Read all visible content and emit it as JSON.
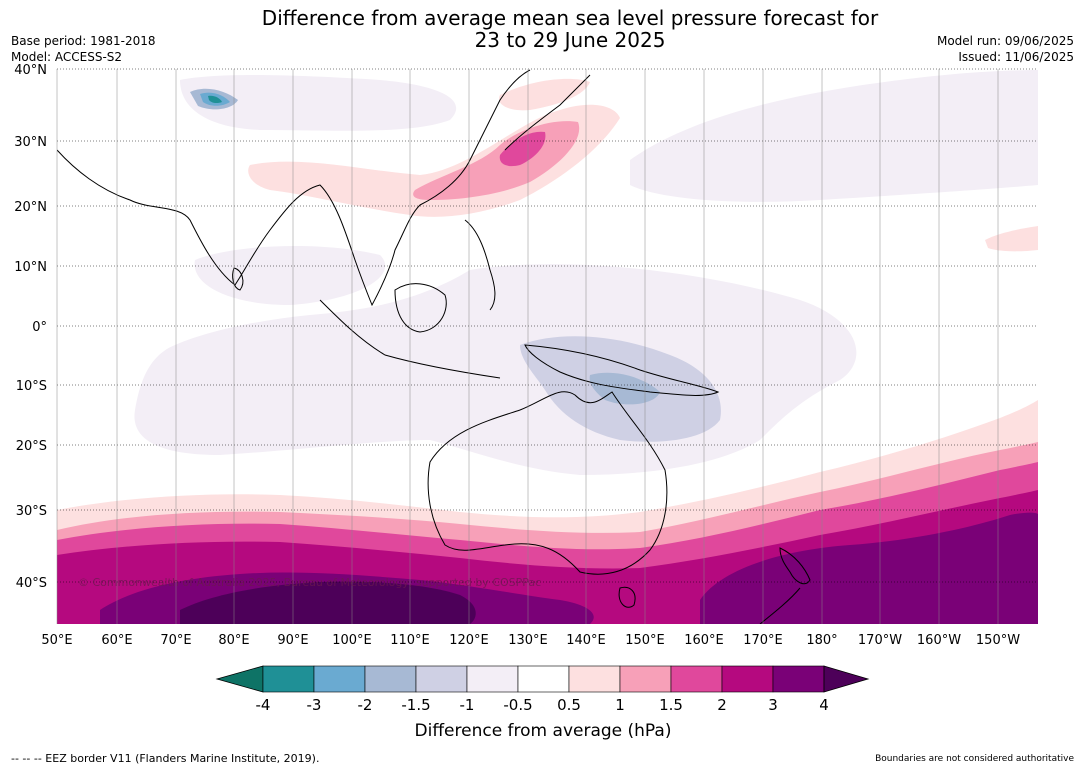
{
  "header": {
    "title_line1": "Difference from average mean sea level pressure forecast for",
    "title_line2": "23 to 29 June 2025",
    "base_period": "Base period: 1981-2018",
    "model": "Model: ACCESS-S2",
    "model_run": "Model run: 09/06/2025",
    "issued": "Issued: 11/06/2025"
  },
  "map": {
    "lat_labels": [
      "40°N",
      "30°N",
      "20°N",
      "10°N",
      "0°",
      "10°S",
      "20°S",
      "30°S",
      "40°S"
    ],
    "lon_labels": [
      "50°E",
      "60°E",
      "70°E",
      "80°E",
      "90°E",
      "100°E",
      "110°E",
      "120°E",
      "130°E",
      "140°E",
      "150°E",
      "160°E",
      "170°E",
      "180°",
      "170°W",
      "160°W",
      "150°W"
    ],
    "copyright": "© Commonwealth of Australia 2025, Bureau of Meteorology, supported by COSPPac"
  },
  "colorbar": {
    "levels": [
      "-4",
      "-3",
      "-2",
      "-1.5",
      "-1",
      "-0.5",
      "0.5",
      "1",
      "1.5",
      "2",
      "3",
      "4"
    ],
    "colors": {
      "below_min": "#0e7366",
      "bins": [
        "#1f9096",
        "#6aaad1",
        "#a7b9d4",
        "#cfd0e4",
        "#f3eef6",
        "#ffffff",
        "#fde0e0",
        "#f7a0b8",
        "#e0489c",
        "#b5097f",
        "#7a0177"
      ],
      "above_max": "#4d0059"
    },
    "label": "Difference from average (hPa)"
  },
  "footer": {
    "eez_note": "--  --  -- EEZ border V11 (Flanders Marine Institute, 2019).",
    "boundaries_note": "Boundaries are not considered authoritative"
  }
}
